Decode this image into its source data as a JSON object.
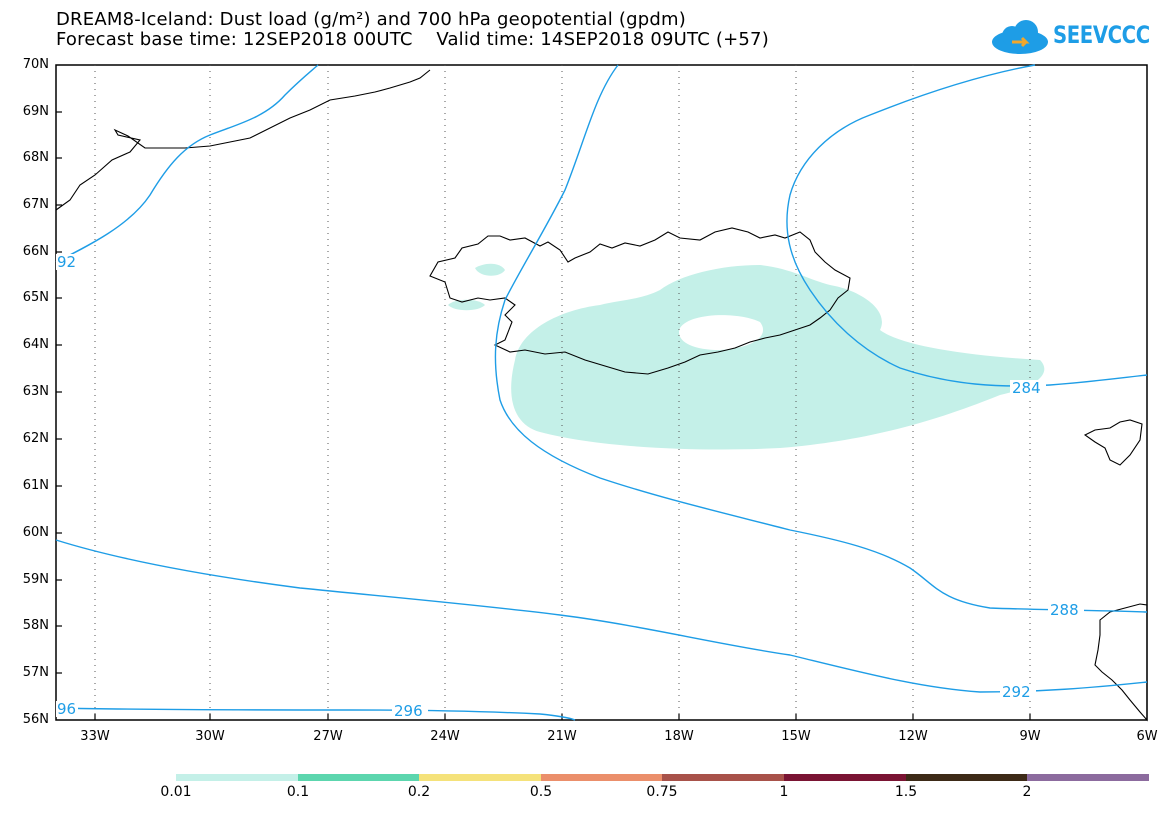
{
  "header": {
    "title_line1": "DREAM8-Iceland: Dust load (g/m²) and 700 hPa geopotential (gpdm)",
    "title_line2": "Forecast base time: 12SEP2018 00UTC    Valid time: 14SEP2018 09UTC (+57)"
  },
  "logo": {
    "text": "SEEVCCC",
    "icon": "cloud-icon",
    "color": "#1e9de6"
  },
  "map": {
    "lat_labels": [
      "70N",
      "69N",
      "68N",
      "67N",
      "66N",
      "65N",
      "64N",
      "63N",
      "62N",
      "61N",
      "60N",
      "59N",
      "58N",
      "57N",
      "56N"
    ],
    "lon_labels": [
      "33W",
      "30W",
      "27W",
      "24W",
      "21W",
      "18W",
      "15W",
      "12W",
      "9W",
      "6W"
    ],
    "contour_labels": [
      {
        "text": "92",
        "series": "292"
      },
      {
        "text": "284",
        "series": "284"
      },
      {
        "text": "288",
        "series": "288"
      },
      {
        "text": "292",
        "series": "292"
      },
      {
        "text": "96",
        "series": "296"
      },
      {
        "text": "296",
        "series": "296"
      }
    ],
    "contour_color": "#1e9de6",
    "dust_color": "#c4f0e8"
  },
  "colorbar": {
    "labels": [
      "0.01",
      "0.1",
      "0.2",
      "0.5",
      "0.75",
      "1",
      "1.5",
      "2"
    ],
    "colors": [
      "#c4f0e8",
      "#5cd6ae",
      "#f5e27a",
      "#eb8f6b",
      "#a8524a",
      "#7a1433",
      "#3d2a17",
      "#8c6b9e"
    ]
  }
}
